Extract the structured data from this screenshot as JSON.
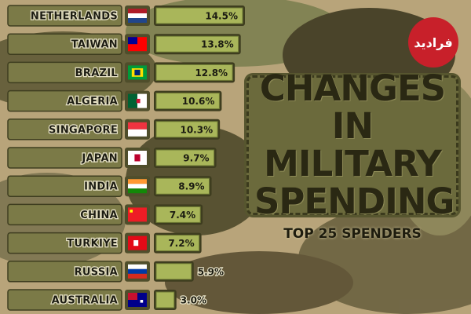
{
  "logo": "فرادید",
  "chart_data": {
    "type": "bar",
    "orientation": "horizontal",
    "title": "CHANGES IN MILITARY SPENDING",
    "subtitle": "TOP 25 SPENDERS",
    "categories": [
      "NETHERLANDS",
      "TAIWAN",
      "BRAZIL",
      "ALGERIA",
      "SINGAPORE",
      "JAPAN",
      "INDIA",
      "CHINA",
      "TURKIYE",
      "RUSSIA",
      "AUSTRALIA"
    ],
    "values": [
      14.5,
      13.8,
      12.8,
      10.6,
      10.3,
      9.7,
      8.9,
      7.4,
      7.2,
      5.9,
      3.0
    ],
    "value_labels": [
      "14.5%",
      "13.8%",
      "12.8%",
      "10.6%",
      "10.3%",
      "9.7%",
      "8.9%",
      "7.4%",
      "7.2%",
      "5.9%",
      "3.0%"
    ],
    "color": "#a9b65a"
  }
}
